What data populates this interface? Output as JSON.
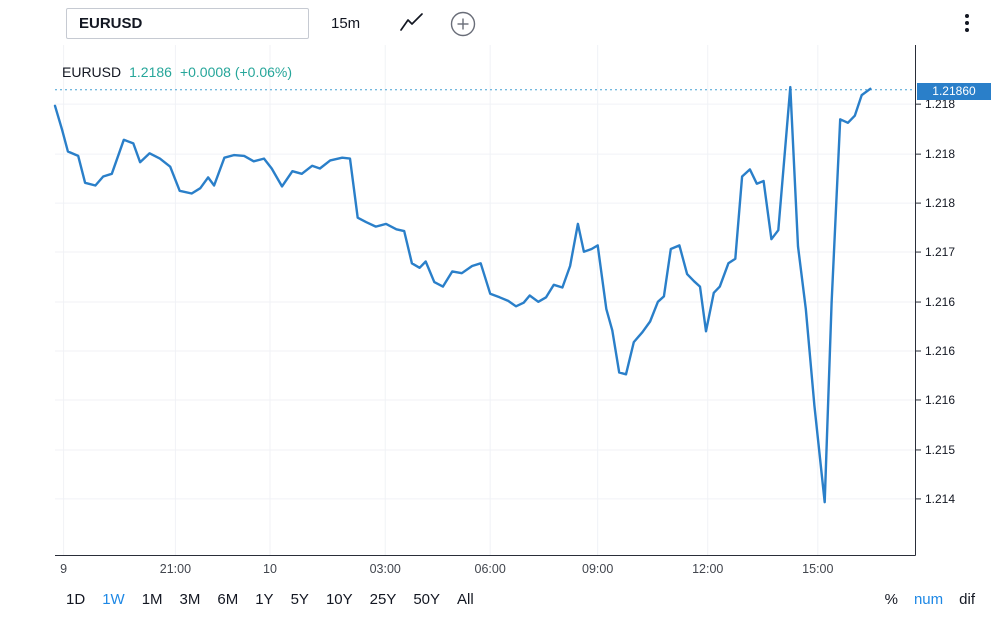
{
  "toolbar": {
    "symbol_value": "EURUSD",
    "interval_label": "15m"
  },
  "legend": {
    "symbol": "EURUSD",
    "price": "1.2186",
    "change": "+0.0008 (+0.06%)"
  },
  "price_scale": {
    "current_label": "1.21860"
  },
  "bottom_bar": {
    "ranges": [
      {
        "label": "1D",
        "active": false
      },
      {
        "label": "1W",
        "active": true
      },
      {
        "label": "1M",
        "active": false
      },
      {
        "label": "3M",
        "active": false
      },
      {
        "label": "6M",
        "active": false
      },
      {
        "label": "1Y",
        "active": false
      },
      {
        "label": "5Y",
        "active": false
      },
      {
        "label": "10Y",
        "active": false
      },
      {
        "label": "25Y",
        "active": false
      },
      {
        "label": "50Y",
        "active": false
      },
      {
        "label": "All",
        "active": false
      }
    ],
    "modes": [
      {
        "label": "%",
        "active": false
      },
      {
        "label": "num",
        "active": true
      },
      {
        "label": "dif",
        "active": false
      }
    ]
  },
  "colors": {
    "series_blue": "#2a7fc9",
    "badge_blue": "#2a7fc9",
    "current_line": "#45a1d4",
    "change_teal": "#26a69a",
    "active_blue": "#1e88e5",
    "axis_line": "#2a2e39",
    "axis_text": "#131722",
    "x_label_text": "#42464e",
    "grid": "#f0f2f6"
  },
  "chart_data": {
    "type": "line",
    "symbol": "EURUSD",
    "interval": "15m",
    "current_price": 1.2186,
    "change": 0.0008,
    "change_pct": 0.06,
    "ylim": [
      1.2134,
      1.2191
    ],
    "grid": true,
    "legend_position": "top-left",
    "y_axis_ticks": [
      {
        "label": "1.218",
        "f": 0.116
      },
      {
        "label": "1.218",
        "f": 0.214
      },
      {
        "label": "1.218",
        "f": 0.31
      },
      {
        "label": "1.217",
        "f": 0.406
      },
      {
        "label": "1.216",
        "f": 0.504
      },
      {
        "label": "1.216",
        "f": 0.6
      },
      {
        "label": "1.216",
        "f": 0.696
      },
      {
        "label": "1.215",
        "f": 0.794
      },
      {
        "label": "1.214",
        "f": 0.89
      }
    ],
    "x_axis_ticks": [
      {
        "label": "9",
        "f": 0.01
      },
      {
        "label": "21:00",
        "f": 0.14
      },
      {
        "label": "10",
        "f": 0.25
      },
      {
        "label": "03:00",
        "f": 0.384
      },
      {
        "label": "06:00",
        "f": 0.506
      },
      {
        "label": "09:00",
        "f": 0.631
      },
      {
        "label": "12:00",
        "f": 0.759
      },
      {
        "label": "15:00",
        "f": 0.887
      }
    ],
    "points": [
      [
        0.0,
        1.21842
      ],
      [
        0.008,
        1.21816
      ],
      [
        0.015,
        1.21791
      ],
      [
        0.027,
        1.21786
      ],
      [
        0.035,
        1.21756
      ],
      [
        0.047,
        1.21753
      ],
      [
        0.056,
        1.21763
      ],
      [
        0.066,
        1.21766
      ],
      [
        0.08,
        1.21804
      ],
      [
        0.091,
        1.218
      ],
      [
        0.099,
        1.21779
      ],
      [
        0.11,
        1.21789
      ],
      [
        0.122,
        1.21783
      ],
      [
        0.134,
        1.21774
      ],
      [
        0.145,
        1.21747
      ],
      [
        0.159,
        1.21744
      ],
      [
        0.169,
        1.2175
      ],
      [
        0.178,
        1.21762
      ],
      [
        0.185,
        1.21753
      ],
      [
        0.197,
        1.21784
      ],
      [
        0.208,
        1.21787
      ],
      [
        0.22,
        1.21786
      ],
      [
        0.231,
        1.2178
      ],
      [
        0.243,
        1.21783
      ],
      [
        0.252,
        1.21772
      ],
      [
        0.264,
        1.21752
      ],
      [
        0.276,
        1.21769
      ],
      [
        0.287,
        1.21766
      ],
      [
        0.299,
        1.21775
      ],
      [
        0.308,
        1.21772
      ],
      [
        0.32,
        1.21781
      ],
      [
        0.334,
        1.21784
      ],
      [
        0.343,
        1.21783
      ],
      [
        0.352,
        1.21717
      ],
      [
        0.362,
        1.21712
      ],
      [
        0.373,
        1.21707
      ],
      [
        0.385,
        1.2171
      ],
      [
        0.397,
        1.21704
      ],
      [
        0.406,
        1.21702
      ],
      [
        0.415,
        1.21666
      ],
      [
        0.424,
        1.21661
      ],
      [
        0.431,
        1.21668
      ],
      [
        0.441,
        1.21645
      ],
      [
        0.451,
        1.2164
      ],
      [
        0.462,
        1.21657
      ],
      [
        0.473,
        1.21655
      ],
      [
        0.485,
        1.21663
      ],
      [
        0.495,
        1.21666
      ],
      [
        0.506,
        1.21632
      ],
      [
        0.517,
        1.21628
      ],
      [
        0.527,
        1.21624
      ],
      [
        0.536,
        1.21618
      ],
      [
        0.545,
        1.21622
      ],
      [
        0.552,
        1.2163
      ],
      [
        0.562,
        1.21623
      ],
      [
        0.571,
        1.21628
      ],
      [
        0.58,
        1.21642
      ],
      [
        0.59,
        1.21639
      ],
      [
        0.599,
        1.21663
      ],
      [
        0.608,
        1.2171
      ],
      [
        0.615,
        1.21679
      ],
      [
        0.624,
        1.21682
      ],
      [
        0.631,
        1.21686
      ],
      [
        0.641,
        1.21615
      ],
      [
        0.648,
        1.21591
      ],
      [
        0.656,
        1.21544
      ],
      [
        0.664,
        1.21542
      ],
      [
        0.673,
        1.21578
      ],
      [
        0.683,
        1.21589
      ],
      [
        0.692,
        1.21601
      ],
      [
        0.701,
        1.21623
      ],
      [
        0.708,
        1.21629
      ],
      [
        0.716,
        1.21682
      ],
      [
        0.726,
        1.21686
      ],
      [
        0.735,
        1.21654
      ],
      [
        0.743,
        1.21646
      ],
      [
        0.75,
        1.2164
      ],
      [
        0.757,
        1.2159
      ],
      [
        0.766,
        1.21633
      ],
      [
        0.773,
        1.2164
      ],
      [
        0.783,
        1.21666
      ],
      [
        0.791,
        1.21671
      ],
      [
        0.799,
        1.21763
      ],
      [
        0.808,
        1.21771
      ],
      [
        0.816,
        1.21755
      ],
      [
        0.824,
        1.21758
      ],
      [
        0.833,
        1.21693
      ],
      [
        0.841,
        1.21703
      ],
      [
        0.855,
        1.21863
      ],
      [
        0.864,
        1.21685
      ],
      [
        0.873,
        1.21615
      ],
      [
        0.883,
        1.21507
      ],
      [
        0.895,
        1.21399
      ],
      [
        0.903,
        1.21622
      ],
      [
        0.913,
        1.21827
      ],
      [
        0.922,
        1.21823
      ],
      [
        0.93,
        1.21831
      ],
      [
        0.938,
        1.21854
      ],
      [
        0.948,
        1.21861
      ]
    ]
  }
}
